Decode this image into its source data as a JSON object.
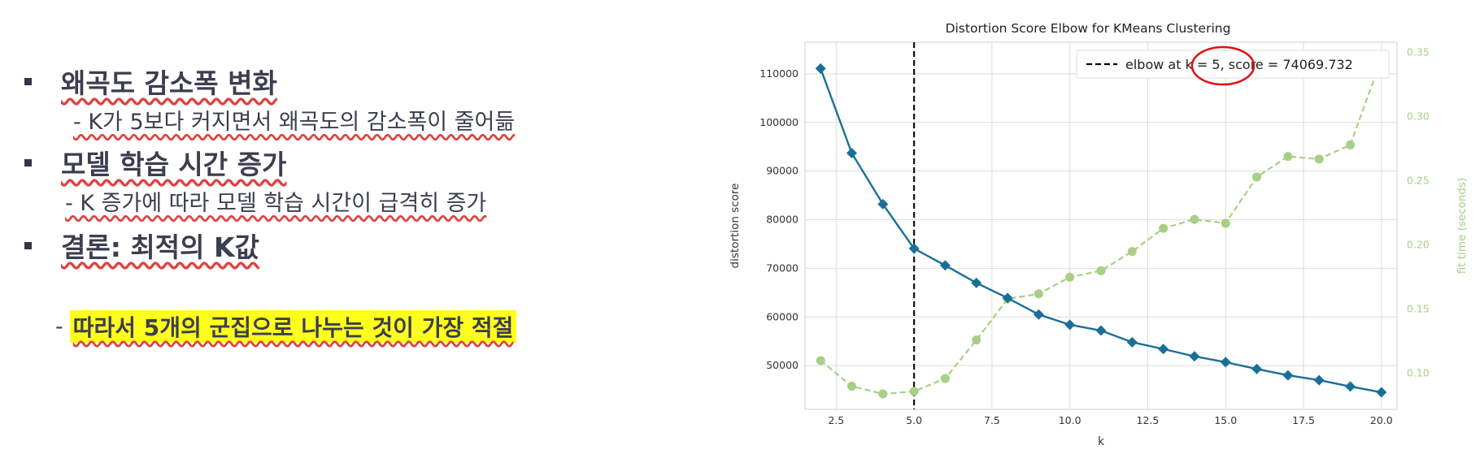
{
  "slide": {
    "bullets": [
      {
        "title": "왜곡도 감소폭 변화",
        "detail": "- K가 5보다 커지면서 왜곡도의 감소폭이 줄어듦"
      },
      {
        "title": "모델 학습 시간 증가",
        "detail": "- K 증가에 따라 모델 학습 시간이 급격히 증가"
      },
      {
        "title": "결론: 최적의 K값",
        "detail_prefix": "-",
        "detail": "따라서 5개의 군집으로 나누는 것이 가장 적절"
      }
    ]
  },
  "colors": {
    "distortion_series": "#1a6f97",
    "fit_time_series": "#a8cf85",
    "highlight": "#ffff1c",
    "annotation_circle": "#e01010"
  },
  "chart_data": {
    "type": "line",
    "title": "Distortion Score Elbow for KMeans Clustering",
    "xlabel": "k",
    "ylabel": "distortion score",
    "y2label": "fit time (seconds)",
    "xlim": [
      1.5,
      20.5
    ],
    "ylim": [
      41000,
      116500
    ],
    "y2lim": [
      0.072,
      0.358
    ],
    "x_ticks": [
      "2.5",
      "5.0",
      "7.5",
      "10.0",
      "12.5",
      "15.0",
      "17.5",
      "20.0"
    ],
    "y_ticks": [
      "50000",
      "60000",
      "70000",
      "80000",
      "90000",
      "100000",
      "110000"
    ],
    "y2_ticks": [
      "0.10",
      "0.15",
      "0.20",
      "0.25",
      "0.30",
      "0.35"
    ],
    "grid": true,
    "legend_position": "top-right",
    "legend_text": "elbow at k = 5, score = 74069.732",
    "elbow": {
      "k": 5,
      "score": 74069.732
    },
    "k": [
      2,
      3,
      4,
      5,
      6,
      7,
      8,
      9,
      10,
      11,
      12,
      13,
      14,
      15,
      16,
      17,
      18,
      19,
      20
    ],
    "series": [
      {
        "name": "distortion score",
        "axis": "left",
        "values": [
          111100,
          93700,
          83200,
          74070,
          70600,
          67000,
          63900,
          60500,
          58400,
          57200,
          54800,
          53400,
          51900,
          50700,
          49300,
          48000,
          47000,
          45700,
          44500
        ]
      },
      {
        "name": "fit time (seconds)",
        "axis": "right",
        "values": [
          0.11,
          0.09,
          0.084,
          0.086,
          0.096,
          0.126,
          0.158,
          0.162,
          0.175,
          0.18,
          0.195,
          0.213,
          0.22,
          0.217,
          0.253,
          0.269,
          0.267,
          0.278,
          0.345
        ]
      }
    ]
  }
}
